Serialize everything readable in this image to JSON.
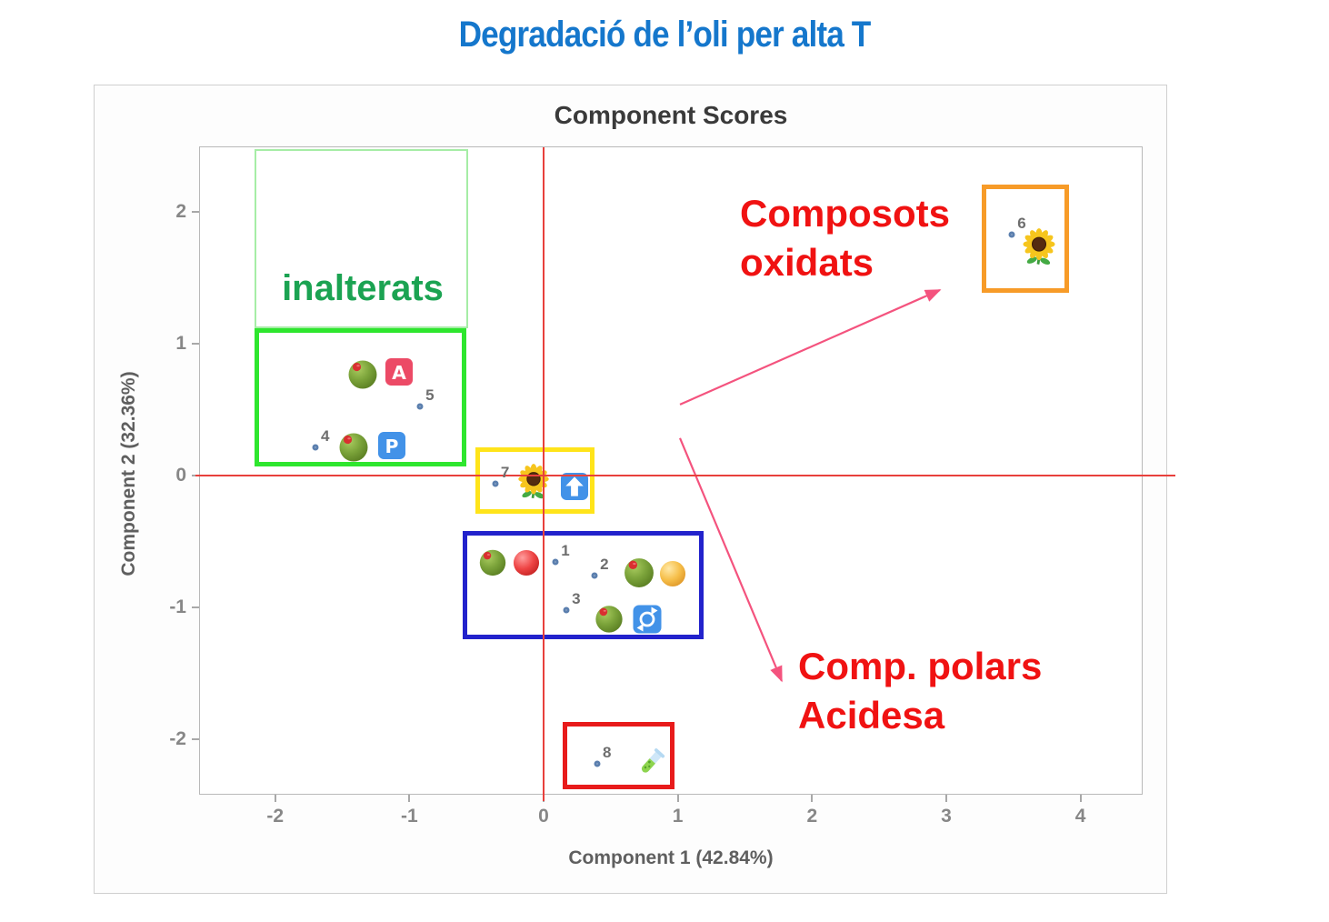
{
  "slide": {
    "title": "Degradació de l’oli per alta T",
    "title_color": "#1577cc"
  },
  "chart_data": {
    "type": "scatter",
    "title": "Component Scores",
    "xlabel": "Component 1 (42.84%)",
    "ylabel": "Component 2 (32.36%)",
    "xlim": [
      -2.56,
      4.47
    ],
    "ylim": [
      -2.43,
      2.49
    ],
    "x_ticks": [
      -2,
      -1,
      0,
      1,
      2,
      3,
      4
    ],
    "y_ticks": [
      2,
      1,
      0,
      -1,
      -2
    ],
    "grid": false,
    "legend": "none",
    "reference_lines": {
      "x": 0,
      "y": 0,
      "color": "#e8403c"
    },
    "marker_style": {
      "ring": "#5b7fae",
      "fill": "#ffffff"
    },
    "points": [
      {
        "label": "1",
        "x": 0.09,
        "y": -0.66
      },
      {
        "label": "2",
        "x": 0.38,
        "y": -0.76
      },
      {
        "label": "3",
        "x": 0.17,
        "y": -1.02
      },
      {
        "label": "4",
        "x": -1.7,
        "y": 0.21
      },
      {
        "label": "5",
        "x": -0.92,
        "y": 0.52
      },
      {
        "label": "6",
        "x": 3.49,
        "y": 1.83
      },
      {
        "label": "7",
        "x": -0.36,
        "y": -0.06
      },
      {
        "label": "8",
        "x": 0.4,
        "y": -2.19
      }
    ],
    "boxes": [
      {
        "name": "inalterats-label-region",
        "color": "#a6eda6",
        "width": 2,
        "x": [
          -2.153,
          -0.562
        ],
        "y": [
          1.117,
          2.476
        ]
      },
      {
        "name": "inalterats-group",
        "color": "#2ee62e",
        "width": 5,
        "x": [
          -2.153,
          -0.575
        ],
        "y": [
          0.069,
          1.117
        ]
      },
      {
        "name": "center-group",
        "color": "#ffe41a",
        "width": 5,
        "x": [
          -0.508,
          0.379
        ],
        "y": [
          -0.29,
          0.214
        ]
      },
      {
        "name": "polar-group",
        "color": "#2222cc",
        "width": 5,
        "x": [
          -0.603,
          1.192
        ],
        "y": [
          -1.241,
          -0.421
        ]
      },
      {
        "name": "acidity-group",
        "color": "#e81b1b",
        "width": 5,
        "x": [
          0.142,
          0.975
        ],
        "y": [
          -2.379,
          -1.869
        ]
      },
      {
        "name": "oxidized-group",
        "color": "#f79b28",
        "width": 5,
        "x": [
          3.263,
          3.913
        ],
        "y": [
          1.386,
          2.207
        ]
      }
    ],
    "icons": [
      {
        "type": "olive",
        "x": -1.347,
        "y": 0.772,
        "size": 36
      },
      {
        "type": "badge-a",
        "x": -1.076,
        "y": 0.786,
        "size": 31
      },
      {
        "type": "olive",
        "x": -1.415,
        "y": 0.221,
        "size": 36
      },
      {
        "type": "badge-p",
        "x": -1.131,
        "y": 0.228,
        "size": 31
      },
      {
        "type": "sunflower",
        "x": -0.074,
        "y": -0.055,
        "size": 42
      },
      {
        "type": "badge-up",
        "x": 0.23,
        "y": -0.083,
        "size": 31
      },
      {
        "type": "olive",
        "x": -0.379,
        "y": -0.655,
        "size": 33
      },
      {
        "type": "red-ball",
        "x": -0.129,
        "y": -0.662,
        "size": 31
      },
      {
        "type": "olive",
        "x": 0.711,
        "y": -0.731,
        "size": 37
      },
      {
        "type": "yellow-ball",
        "x": 0.961,
        "y": -0.745,
        "size": 31
      },
      {
        "type": "olive",
        "x": 0.487,
        "y": -1.083,
        "size": 34
      },
      {
        "type": "badge-refresh",
        "x": 0.772,
        "y": -1.09,
        "size": 32
      },
      {
        "type": "test-tube",
        "x": 0.792,
        "y": -2.186,
        "size": 42
      },
      {
        "type": "sunflower",
        "x": 3.69,
        "y": 1.724,
        "size": 44
      }
    ],
    "arrows": {
      "color": "#f4537e",
      "lines": [
        {
          "x1": 1.016,
          "y1": 0.538,
          "x2": 2.952,
          "y2": 1.407
        },
        {
          "x1": 1.016,
          "y1": 0.283,
          "x2": 1.774,
          "y2": -1.559
        }
      ]
    },
    "annotations": {
      "inalterats": {
        "text": "inalterats",
        "color": "#1ba352"
      },
      "composots": {
        "lines": [
          "Composots",
          "oxidats"
        ],
        "color": "#f01212"
      },
      "polars": {
        "lines": [
          "Comp. polars",
          "Acidesa"
        ],
        "color": "#f01212"
      }
    }
  }
}
